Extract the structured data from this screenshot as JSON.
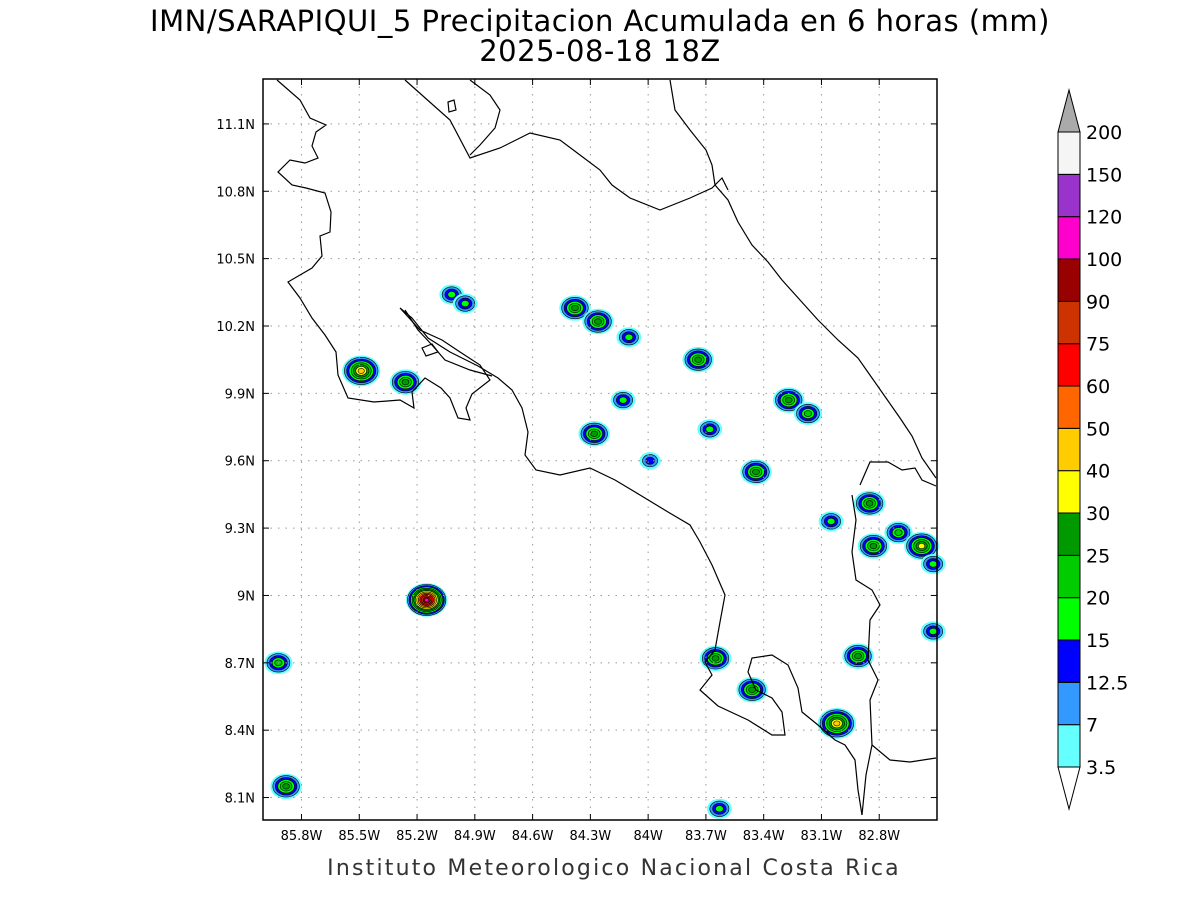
{
  "title": {
    "line1": "IMN/SARAPIQUI_5 Precipitacion Acumulada en 6 horas (mm)",
    "line2": "2025-08-18 18Z"
  },
  "footer": "Instituto Meteorologico Nacional Costa Rica",
  "map": {
    "lon_range": [
      -86.0,
      -82.5
    ],
    "lat_range": [
      8.0,
      11.3
    ],
    "lon_ticks": [
      {
        "value": -85.8,
        "label": "85.8W"
      },
      {
        "value": -85.5,
        "label": "85.5W"
      },
      {
        "value": -85.2,
        "label": "85.2W"
      },
      {
        "value": -84.9,
        "label": "84.9W"
      },
      {
        "value": -84.6,
        "label": "84.6W"
      },
      {
        "value": -84.3,
        "label": "84.3W"
      },
      {
        "value": -84.0,
        "label": "84W"
      },
      {
        "value": -83.7,
        "label": "83.7W"
      },
      {
        "value": -83.4,
        "label": "83.4W"
      },
      {
        "value": -83.1,
        "label": "83.1W"
      },
      {
        "value": -82.8,
        "label": "82.8W"
      }
    ],
    "lat_ticks": [
      {
        "value": 8.1,
        "label": "8.1N"
      },
      {
        "value": 8.4,
        "label": "8.4N"
      },
      {
        "value": 8.7,
        "label": "8.7N"
      },
      {
        "value": 9.0,
        "label": "9N"
      },
      {
        "value": 9.3,
        "label": "9.3N"
      },
      {
        "value": 9.6,
        "label": "9.6N"
      },
      {
        "value": 9.9,
        "label": "9.9N"
      },
      {
        "value": 10.2,
        "label": "10.2N"
      },
      {
        "value": 10.5,
        "label": "10.5N"
      },
      {
        "value": 10.8,
        "label": "10.8N"
      },
      {
        "value": 11.1,
        "label": "11.1N"
      }
    ],
    "grid": true
  },
  "colorbar": {
    "levels": [
      "3.5",
      "7",
      "12.5",
      "15",
      "20",
      "25",
      "30",
      "40",
      "50",
      "60",
      "75",
      "90",
      "100",
      "120",
      "150",
      "200"
    ],
    "colors": [
      "#ffffff",
      "#66ffff",
      "#3399ff",
      "#0000ff",
      "#00ff00",
      "#00cc00",
      "#009900",
      "#ffff00",
      "#ffcc00",
      "#ff6600",
      "#ff0000",
      "#cc3300",
      "#990000",
      "#ff00cc",
      "#9933cc",
      "#f5f5f5",
      "#aaaaaa"
    ]
  },
  "precip_cells": [
    {
      "lon": -85.15,
      "lat": 8.98,
      "max": 100
    },
    {
      "lon": -85.49,
      "lat": 10.0,
      "max": 40
    },
    {
      "lon": -85.26,
      "lat": 9.95,
      "max": 25
    },
    {
      "lon": -85.92,
      "lat": 8.7,
      "max": 20
    },
    {
      "lon": -85.88,
      "lat": 8.15,
      "max": 25
    },
    {
      "lon": -85.02,
      "lat": 10.34,
      "max": 15
    },
    {
      "lon": -84.95,
      "lat": 10.3,
      "max": 15
    },
    {
      "lon": -84.38,
      "lat": 10.28,
      "max": 25
    },
    {
      "lon": -84.26,
      "lat": 10.22,
      "max": 25
    },
    {
      "lon": -84.1,
      "lat": 10.15,
      "max": 15
    },
    {
      "lon": -83.74,
      "lat": 10.05,
      "max": 25
    },
    {
      "lon": -84.28,
      "lat": 9.72,
      "max": 25
    },
    {
      "lon": -84.13,
      "lat": 9.87,
      "max": 15
    },
    {
      "lon": -83.99,
      "lat": 9.6,
      "max": 12.5
    },
    {
      "lon": -83.68,
      "lat": 9.74,
      "max": 15
    },
    {
      "lon": -83.27,
      "lat": 9.87,
      "max": 25
    },
    {
      "lon": -83.17,
      "lat": 9.81,
      "max": 20
    },
    {
      "lon": -83.44,
      "lat": 9.55,
      "max": 25
    },
    {
      "lon": -83.05,
      "lat": 9.33,
      "max": 15
    },
    {
      "lon": -82.85,
      "lat": 9.41,
      "max": 25
    },
    {
      "lon": -82.83,
      "lat": 9.22,
      "max": 25
    },
    {
      "lon": -82.7,
      "lat": 9.28,
      "max": 20
    },
    {
      "lon": -82.58,
      "lat": 9.22,
      "max": 30
    },
    {
      "lon": -82.52,
      "lat": 9.14,
      "max": 15
    },
    {
      "lon": -82.52,
      "lat": 8.84,
      "max": 15
    },
    {
      "lon": -83.65,
      "lat": 8.72,
      "max": 25
    },
    {
      "lon": -83.46,
      "lat": 8.58,
      "max": 25
    },
    {
      "lon": -83.02,
      "lat": 8.43,
      "max": 40
    },
    {
      "lon": -82.91,
      "lat": 8.73,
      "max": 25
    },
    {
      "lon": -83.63,
      "lat": 8.05,
      "max": 15
    }
  ]
}
